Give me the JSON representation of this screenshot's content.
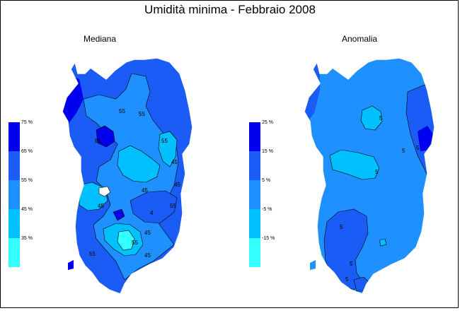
{
  "title": "Umidità minima - Febbraio 2008",
  "panels": [
    {
      "id": "mediana",
      "label": "Mediana",
      "legend": {
        "labels": [
          "75 %",
          "65 %",
          "55 %",
          "45 %",
          "35 %"
        ],
        "colors": [
          "#0000ee",
          "#1a5cf5",
          "#1e90ff",
          "#00c0ff",
          "#33ffff"
        ]
      },
      "contour_labels": [
        "55",
        "55",
        "65",
        "55",
        "45",
        "45",
        "45",
        "45",
        "45",
        "55",
        "55",
        "45",
        "55",
        "4"
      ]
    },
    {
      "id": "anomalia",
      "label": "Anomalia",
      "legend": {
        "labels": [
          "25 %",
          "15 %",
          "5 %",
          "-5 %",
          "-15 %"
        ],
        "colors": [
          "#0000ee",
          "#1a5cf5",
          "#1e90ff",
          "#00c0ff",
          "#33ffff"
        ]
      },
      "contour_labels": [
        "5",
        "5",
        "5",
        "5",
        "5",
        "5",
        "5"
      ]
    }
  ]
}
